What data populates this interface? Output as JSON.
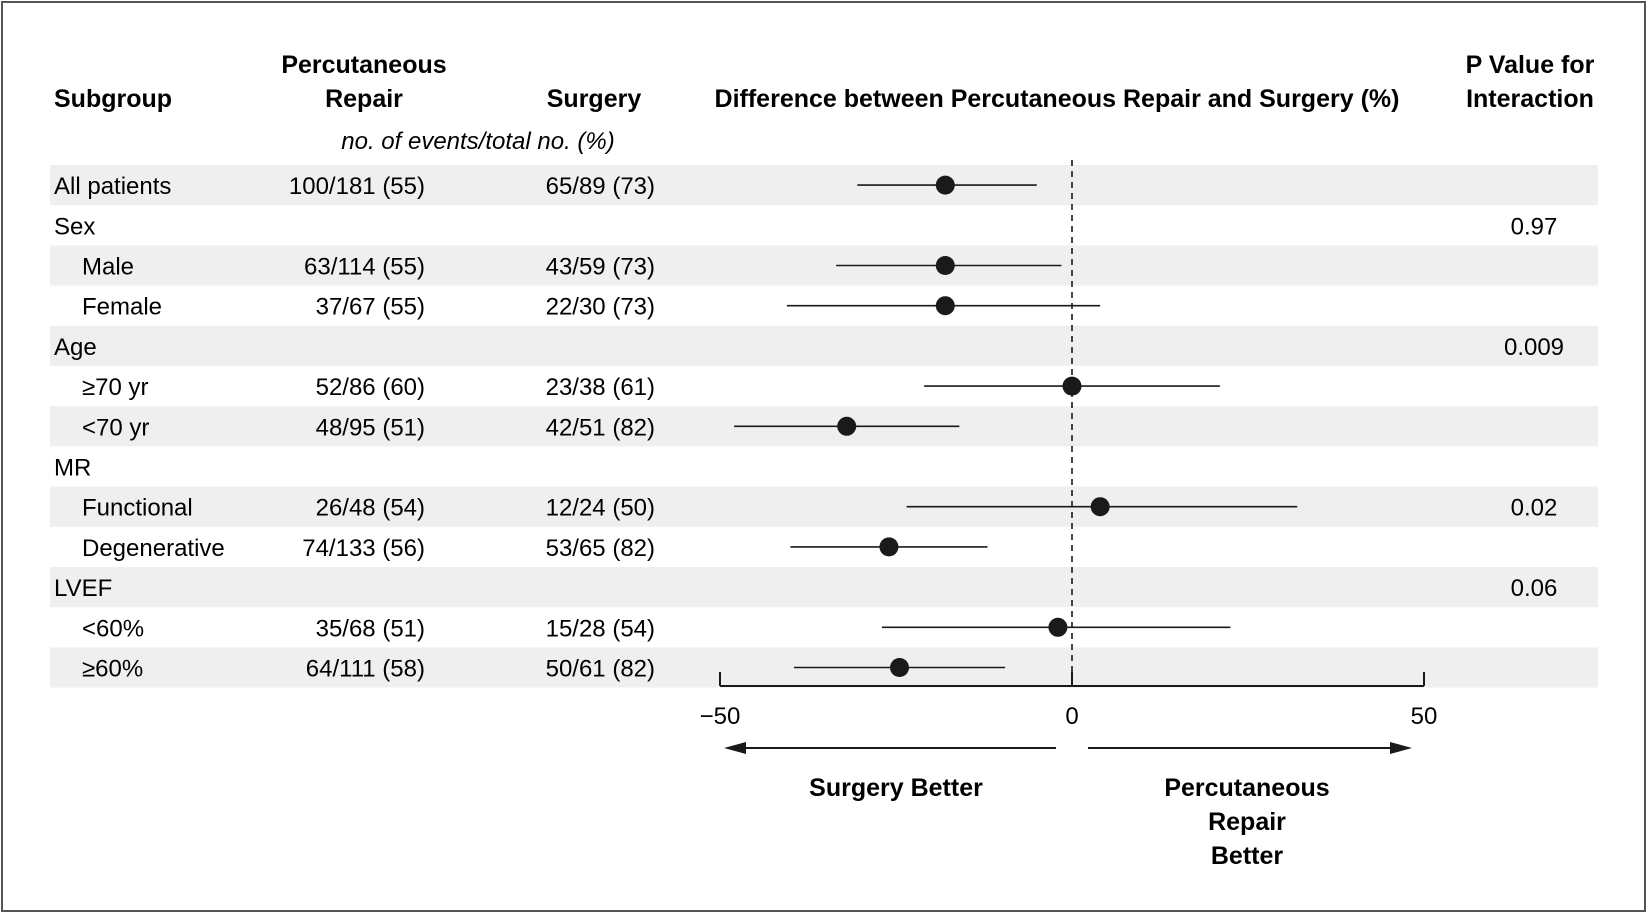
{
  "header": {
    "subgroup": "Subgroup",
    "percutaneous_line1": "Percutaneous",
    "percutaneous_line2": "Repair",
    "surgery": "Surgery",
    "difference": "Difference between Percutaneous Repair and Surgery (%)",
    "pvalue_line1": "P Value for",
    "pvalue_line2": "Interaction",
    "units": "no. of events/total no. (%)"
  },
  "chart_data": {
    "type": "forest",
    "xlim": [
      -50,
      50
    ],
    "x_ticks": [
      "−50",
      "0",
      "50"
    ],
    "x_tick_values": [
      -50,
      0,
      50
    ],
    "reference_line": 0,
    "left_direction_label": "Surgery Better",
    "right_direction_label_lines": [
      "Percutaneous",
      "Repair",
      "Better"
    ],
    "rows": [
      {
        "label": "All patients",
        "indent": false,
        "shaded": true,
        "perc": "100/181 (55)",
        "surg": "65/89 (73)",
        "p": "",
        "est": -18,
        "lo": -30.5,
        "hi": -5
      },
      {
        "label": "Sex",
        "indent": false,
        "shaded": false,
        "perc": "",
        "surg": "",
        "p": "0.97",
        "est": null,
        "lo": null,
        "hi": null
      },
      {
        "label": "Male",
        "indent": true,
        "shaded": true,
        "perc": "63/114 (55)",
        "surg": "43/59 (73)",
        "p": "",
        "est": -18,
        "lo": -33.5,
        "hi": -1.5
      },
      {
        "label": "Female",
        "indent": true,
        "shaded": false,
        "perc": "37/67 (55)",
        "surg": "22/30 (73)",
        "p": "",
        "est": -18,
        "lo": -40.5,
        "hi": 4
      },
      {
        "label": "Age",
        "indent": false,
        "shaded": true,
        "perc": "",
        "surg": "",
        "p": "0.009",
        "est": null,
        "lo": null,
        "hi": null
      },
      {
        "label": "≥70 yr",
        "indent": true,
        "shaded": false,
        "perc": "52/86 (60)",
        "surg": "23/38 (61)",
        "p": "",
        "est": 0,
        "lo": -21,
        "hi": 21
      },
      {
        "label": "<70 yr",
        "indent": true,
        "shaded": true,
        "perc": "48/95 (51)",
        "surg": "42/51 (82)",
        "p": "",
        "est": -32,
        "lo": -48,
        "hi": -16
      },
      {
        "label": "MR",
        "indent": false,
        "shaded": false,
        "perc": "",
        "surg": "",
        "p": "",
        "est": null,
        "lo": null,
        "hi": null
      },
      {
        "label": "Functional",
        "indent": true,
        "shaded": true,
        "perc": "26/48 (54)",
        "surg": "12/24 (50)",
        "p": "0.02",
        "est": 4,
        "lo": -23.5,
        "hi": 32
      },
      {
        "label": "Degenerative",
        "indent": true,
        "shaded": false,
        "perc": "74/133 (56)",
        "surg": "53/65 (82)",
        "p": "",
        "est": -26,
        "lo": -40,
        "hi": -12
      },
      {
        "label": "LVEF",
        "indent": false,
        "shaded": true,
        "perc": "",
        "surg": "",
        "p": "0.06",
        "est": null,
        "lo": null,
        "hi": null
      },
      {
        "label": "<60%",
        "indent": true,
        "shaded": false,
        "perc": "35/68 (51)",
        "surg": "15/28 (54)",
        "p": "",
        "est": -2,
        "lo": -27,
        "hi": 22.5
      },
      {
        "label": "≥60%",
        "indent": true,
        "shaded": true,
        "perc": "64/111 (58)",
        "surg": "50/61 (82)",
        "p": "",
        "est": -24.5,
        "lo": -39.5,
        "hi": -9.5
      }
    ]
  }
}
